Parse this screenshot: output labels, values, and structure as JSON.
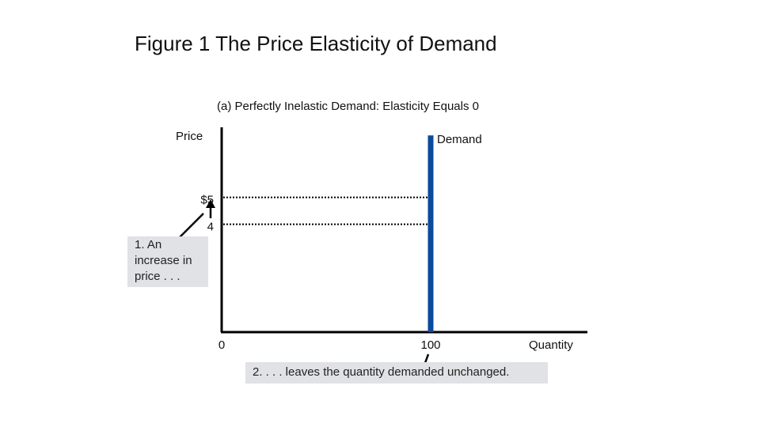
{
  "figure_title": "Figure 1 The Price Elasticity of Demand",
  "colors": {
    "demand_line": "#0b4a9c",
    "axis": "#000000",
    "annotation_bg": "#e1e2e6"
  },
  "annotations": {
    "price_change": "1. An increase in price . . .",
    "quantity_change": "2. . . . leaves the quantity demanded unchanged."
  },
  "chart_data": {
    "type": "line",
    "title": "(a) Perfectly Inelastic Demand: Elasticity Equals 0",
    "xlabel": "Quantity",
    "ylabel": "Price",
    "series": [
      {
        "name": "Demand",
        "x": [
          100,
          100
        ],
        "y": [
          0,
          7.3
        ]
      }
    ],
    "x_ticks": [
      {
        "value": 0,
        "label": "0"
      },
      {
        "value": 100,
        "label": "100"
      }
    ],
    "y_ticks": [
      {
        "value": 5,
        "label": "$5"
      },
      {
        "value": 4,
        "label": "4"
      }
    ],
    "guide_lines": [
      {
        "y": 5,
        "x_from": 0,
        "x_to": 100,
        "style": "dotted"
      },
      {
        "y": 4,
        "x_from": 0,
        "x_to": 100,
        "style": "dotted"
      }
    ],
    "xlim": [
      0,
      175
    ],
    "ylim": [
      0,
      7.6
    ],
    "grid": false,
    "legend": "none"
  }
}
